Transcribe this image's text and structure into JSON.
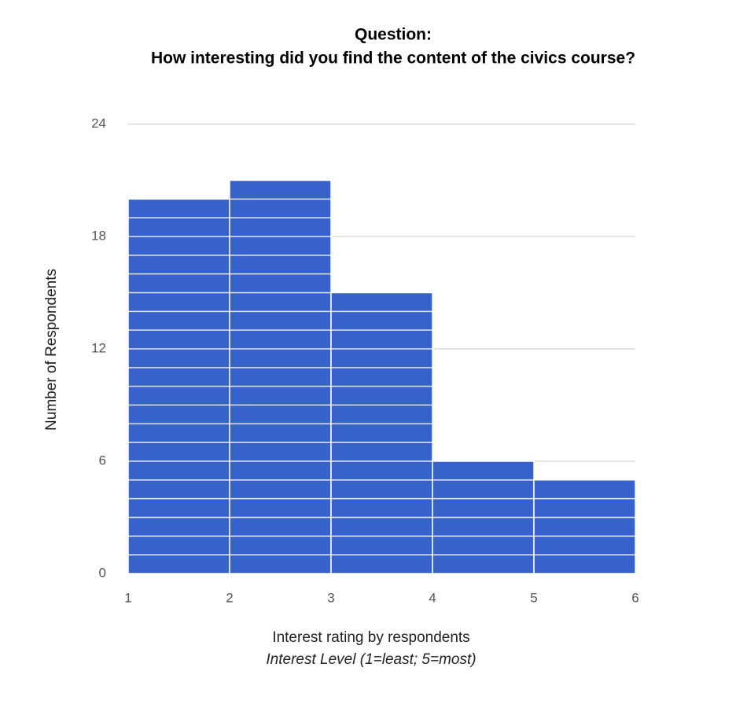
{
  "chart_data": {
    "type": "histogram",
    "title": "Question:",
    "subtitle": "How interesting did you find the content of the civics course?",
    "xlabel": "Interest rating by respondents",
    "xlabel_note": "Interest Level (1=least; 5=most)",
    "ylabel": "Number of Respondents",
    "bins": [
      1,
      2,
      3,
      4,
      5,
      6
    ],
    "values": [
      20,
      21,
      15,
      6,
      5
    ],
    "color": "#3762cc",
    "xlim": [
      1,
      6
    ],
    "xticks": [
      1,
      2,
      3,
      4,
      5,
      6
    ],
    "ylim": [
      0,
      24
    ],
    "yticks": [
      0,
      6,
      12,
      18,
      24
    ],
    "grid": true
  }
}
